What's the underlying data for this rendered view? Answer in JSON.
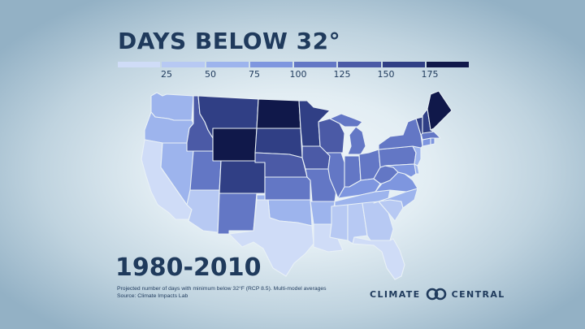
{
  "title": "DAYS BELOW 32°",
  "legend": {
    "colors": [
      "#cfdcf7",
      "#b7c9f3",
      "#9db4ed",
      "#7e96df",
      "#6377c5",
      "#4b5aa6",
      "#303f85",
      "#10184a"
    ],
    "ticks": [
      "25",
      "50",
      "75",
      "100",
      "125",
      "150",
      "175"
    ]
  },
  "era": "1980-2010",
  "caption": {
    "line1": "Projected number of days with minimum below 32°F (RCP 8.5). Multi-model averages",
    "line2": "Source: Climate Impacts Lab"
  },
  "logo": {
    "left": "CLIMATE",
    "right": "CENTRAL"
  },
  "map_data": {
    "WA": {
      "color": "#9db4ed"
    },
    "OR": {
      "color": "#9db4ed"
    },
    "CA": {
      "color": "#cfdcf7"
    },
    "ID": {
      "color": "#4b5aa6"
    },
    "NV": {
      "color": "#9db4ed"
    },
    "MT": {
      "color": "#303f85"
    },
    "WY": {
      "color": "#10184a"
    },
    "UT": {
      "color": "#6377c5"
    },
    "AZ": {
      "color": "#b7c9f3"
    },
    "CO": {
      "color": "#303f85"
    },
    "NM": {
      "color": "#6377c5"
    },
    "ND": {
      "color": "#10184a"
    },
    "SD": {
      "color": "#303f85"
    },
    "NE": {
      "color": "#4b5aa6"
    },
    "KS": {
      "color": "#6377c5"
    },
    "OK": {
      "color": "#9db4ed"
    },
    "TX": {
      "color": "#cfdcf7"
    },
    "MN": {
      "color": "#303f85"
    },
    "IA": {
      "color": "#4b5aa6"
    },
    "MO": {
      "color": "#6377c5"
    },
    "AR": {
      "color": "#9db4ed"
    },
    "LA": {
      "color": "#cfdcf7"
    },
    "WI": {
      "color": "#4b5aa6"
    },
    "IL": {
      "color": "#6377c5"
    },
    "MI": {
      "color": "#6377c5"
    },
    "IN": {
      "color": "#6377c5"
    },
    "OH": {
      "color": "#6377c5"
    },
    "KY": {
      "color": "#7e96df"
    },
    "TN": {
      "color": "#9db4ed"
    },
    "MS": {
      "color": "#b7c9f3"
    },
    "AL": {
      "color": "#b7c9f3"
    },
    "GA": {
      "color": "#b7c9f3"
    },
    "FL": {
      "color": "#cfdcf7"
    },
    "SC": {
      "color": "#b7c9f3"
    },
    "NC": {
      "color": "#9db4ed"
    },
    "VA": {
      "color": "#7e96df"
    },
    "WV": {
      "color": "#6377c5"
    },
    "PA": {
      "color": "#6377c5"
    },
    "NY": {
      "color": "#6377c5"
    },
    "VT": {
      "color": "#303f85"
    },
    "NH": {
      "color": "#303f85"
    },
    "ME": {
      "color": "#10184a"
    },
    "MA": {
      "color": "#6377c5"
    },
    "CT": {
      "color": "#7e96df"
    },
    "RI": {
      "color": "#7e96df"
    },
    "NJ": {
      "color": "#9db4ed"
    },
    "DE": {
      "color": "#9db4ed"
    },
    "MD": {
      "color": "#7e96df"
    }
  }
}
